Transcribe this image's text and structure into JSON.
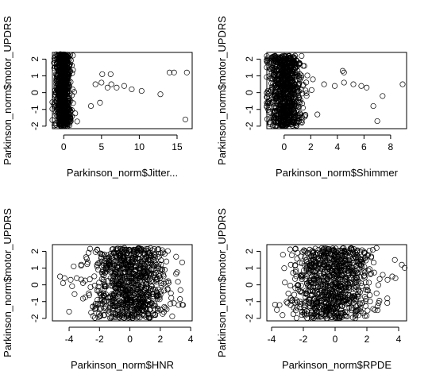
{
  "chart_data": [
    {
      "type": "scatter",
      "xlabel": "Parkinson_norm$Jitter...",
      "ylabel": "Parkinson_norm$motor_UPDRS",
      "xlim": [
        -1.5,
        17
      ],
      "ylim": [
        -2.15,
        2.4
      ],
      "xticks": [
        0,
        5,
        10,
        15
      ],
      "yticks": [
        -2,
        -1,
        0,
        1,
        2
      ],
      "grid": false,
      "dense_cloud": {
        "x_range": [
          -1,
          0.8
        ],
        "y_range": [
          -2,
          2.3
        ]
      },
      "outliers": [
        {
          "x": 4.2,
          "y": 0.5
        },
        {
          "x": 5.0,
          "y": 0.6
        },
        {
          "x": 5.8,
          "y": 0.3
        },
        {
          "x": 6.3,
          "y": 0.5
        },
        {
          "x": 7.0,
          "y": 0.3
        },
        {
          "x": 8.0,
          "y": 0.4
        },
        {
          "x": 9.0,
          "y": 0.2
        },
        {
          "x": 10.3,
          "y": 0.1
        },
        {
          "x": 12.8,
          "y": -0.1
        },
        {
          "x": 14.0,
          "y": 1.2
        },
        {
          "x": 14.6,
          "y": 1.2
        },
        {
          "x": 16.3,
          "y": 1.2
        },
        {
          "x": 16.1,
          "y": -1.6
        },
        {
          "x": 5.1,
          "y": 1.1
        },
        {
          "x": 6.2,
          "y": 1.1
        },
        {
          "x": 3.6,
          "y": -0.8
        },
        {
          "x": 4.8,
          "y": -0.6
        }
      ]
    },
    {
      "type": "scatter",
      "xlabel": "Parkinson_norm$Shimmer",
      "ylabel": "Parkinson_norm$motor_UPDRS",
      "xlim": [
        -1.3,
        9.2
      ],
      "ylim": [
        -2.15,
        2.4
      ],
      "xticks": [
        0,
        2,
        4,
        6,
        8
      ],
      "yticks": [
        -2,
        -1,
        0,
        1,
        2
      ],
      "grid": false,
      "dense_cloud": {
        "x_range": [
          -1,
          1.2
        ],
        "y_range": [
          -2,
          2.2
        ]
      },
      "outliers": [
        {
          "x": 3.0,
          "y": 0.5
        },
        {
          "x": 3.8,
          "y": 0.4
        },
        {
          "x": 4.5,
          "y": 0.6
        },
        {
          "x": 5.2,
          "y": 0.5
        },
        {
          "x": 5.8,
          "y": 0.4
        },
        {
          "x": 6.2,
          "y": 0.3
        },
        {
          "x": 8.9,
          "y": 0.5
        },
        {
          "x": 7.4,
          "y": -0.2
        },
        {
          "x": 6.7,
          "y": -0.8
        },
        {
          "x": 7.0,
          "y": -1.7
        },
        {
          "x": 4.5,
          "y": 1.2
        },
        {
          "x": 4.4,
          "y": 1.3
        },
        {
          "x": 2.5,
          "y": -1.3
        }
      ]
    },
    {
      "type": "scatter",
      "xlabel": "Parkinson_norm$HNR",
      "ylabel": "Parkinson_norm$motor_UPDRS",
      "xlim": [
        -5.1,
        4.1
      ],
      "ylim": [
        -2.15,
        2.4
      ],
      "xticks": [
        -4,
        -2,
        0,
        2,
        4
      ],
      "yticks": [
        -2,
        -1,
        0,
        1,
        2
      ],
      "grid": false,
      "dense_cloud": {
        "x_range": [
          -2.2,
          2.2
        ],
        "y_range": [
          -2,
          2.2
        ]
      },
      "outliers": [
        {
          "x": -4.6,
          "y": 0.5
        },
        {
          "x": -4.3,
          "y": 0.4
        },
        {
          "x": -3.9,
          "y": 0.3
        },
        {
          "x": -3.5,
          "y": 0.4
        },
        {
          "x": -4.0,
          "y": -1.6
        },
        {
          "x": -3.7,
          "y": 1.1
        },
        {
          "x": -3.2,
          "y": 1.2
        },
        {
          "x": 3.5,
          "y": -1.2
        },
        {
          "x": 3.2,
          "y": -1.2
        },
        {
          "x": 2.9,
          "y": -1.1
        },
        {
          "x": 2.7,
          "y": -0.5
        },
        {
          "x": -4.4,
          "y": 0.1
        }
      ]
    },
    {
      "type": "scatter",
      "xlabel": "Parkinson_norm$RPDE",
      "ylabel": "Parkinson_norm$motor_UPDRS",
      "xlim": [
        -4.3,
        4.5
      ],
      "ylim": [
        -2.15,
        2.4
      ],
      "xticks": [
        -4,
        -2,
        0,
        2,
        4
      ],
      "yticks": [
        -2,
        -1,
        0,
        1,
        2
      ],
      "grid": false,
      "dense_cloud": {
        "x_range": [
          -2.3,
          2
        ],
        "y_range": [
          -2,
          2.2
        ]
      },
      "outliers": [
        {
          "x": 4.2,
          "y": 1.2
        },
        {
          "x": 3.6,
          "y": 0.5
        },
        {
          "x": 3.8,
          "y": 0.4
        },
        {
          "x": 3.3,
          "y": 0.3
        },
        {
          "x": -3.5,
          "y": -1.2
        },
        {
          "x": -3.0,
          "y": -1.1
        },
        {
          "x": -2.7,
          "y": -0.9
        },
        {
          "x": 3.0,
          "y": 0.6
        },
        {
          "x": 2.5,
          "y": -1.5
        }
      ]
    }
  ]
}
